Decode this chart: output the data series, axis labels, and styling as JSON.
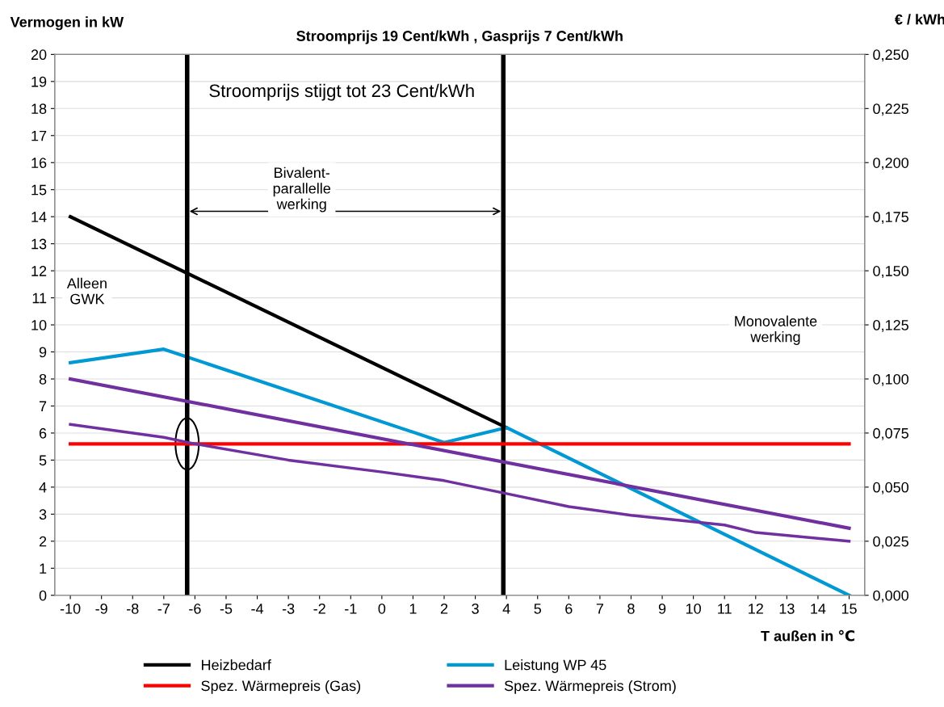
{
  "chart_data": {
    "type": "line",
    "title": "Stroomprijs 19 Cent/kWh , Gasprijs 7 Cent/kWh",
    "xlabel": "T außen in ℃",
    "ylabel": "Vermogen in kW",
    "y2label": "€ / kWh",
    "annotations": [
      "Stroomprijs stijgt tot 23 Cent/kWh",
      "Bivalent-\nparallelle\nwerking",
      "Alleen\nGWK",
      "Monovalente\nwerking"
    ],
    "xlim": [
      -10.5,
      15.5
    ],
    "xticks": [
      -10,
      -9,
      -8,
      -7,
      -6,
      -5,
      -4,
      -3,
      -2,
      -1,
      0,
      1,
      2,
      3,
      4,
      5,
      6,
      7,
      8,
      9,
      10,
      11,
      12,
      13,
      14,
      15
    ],
    "ylim": [
      0,
      20
    ],
    "yticks": [
      0,
      1,
      2,
      3,
      4,
      5,
      6,
      7,
      8,
      9,
      10,
      11,
      12,
      13,
      14,
      15,
      16,
      17,
      18,
      19,
      20
    ],
    "y2lim": [
      0,
      0.25
    ],
    "y2ticks": [
      {
        "value": 0,
        "label": "0,000"
      },
      {
        "value": 0.025,
        "label": "0,025"
      },
      {
        "value": 0.05,
        "label": "0,050"
      },
      {
        "value": 0.075,
        "label": "0,075"
      },
      {
        "value": 0.1,
        "label": "0,100"
      },
      {
        "value": 0.125,
        "label": "0,125"
      },
      {
        "value": 0.15,
        "label": "0,150"
      },
      {
        "value": 0.175,
        "label": "0,175"
      },
      {
        "value": 0.2,
        "label": "0,200"
      },
      {
        "value": 0.225,
        "label": "0,225"
      },
      {
        "value": 0.25,
        "label": "0,250"
      }
    ],
    "grid": "y",
    "legend": "bottom",
    "marker": "none",
    "line_style": "solid",
    "ref_lines": [
      {
        "axis": "x",
        "value": -6.25,
        "color": "#000000"
      },
      {
        "axis": "x",
        "value": 3.9,
        "color": "#000000"
      }
    ],
    "series": [
      {
        "name": "Heizbedarf",
        "color": "#000000",
        "x": [
          -10,
          4
        ],
        "values": [
          14,
          6.2
        ]
      },
      {
        "name": "Spez. Wärmepreis (Gas)",
        "color": "#ff0000",
        "axis": "y2",
        "x": [
          -10,
          15
        ],
        "values": [
          0.07,
          0.07
        ]
      },
      {
        "name": "Leistung WP 45",
        "color": "#0099d4",
        "x": [
          -10,
          -7,
          2,
          4,
          15
        ],
        "values": [
          8.6,
          9.1,
          5.65,
          6.2,
          0
        ]
      },
      {
        "name": "Spez. Wärmepreis (Strom)",
        "color": "#7030a0",
        "axis": "y2",
        "x": [
          -10,
          15
        ],
        "values": [
          0.1,
          0.031
        ]
      },
      {
        "color": "#7030a0",
        "axis": "y2",
        "x": [
          -10,
          -7,
          -6,
          -3,
          0,
          2,
          4,
          6,
          8,
          10,
          11,
          12,
          15
        ],
        "values": [
          0.079,
          0.073,
          0.07,
          0.0625,
          0.057,
          0.053,
          0.047,
          0.041,
          0.037,
          0.034,
          0.0325,
          0.029,
          0.025
        ]
      }
    ]
  }
}
